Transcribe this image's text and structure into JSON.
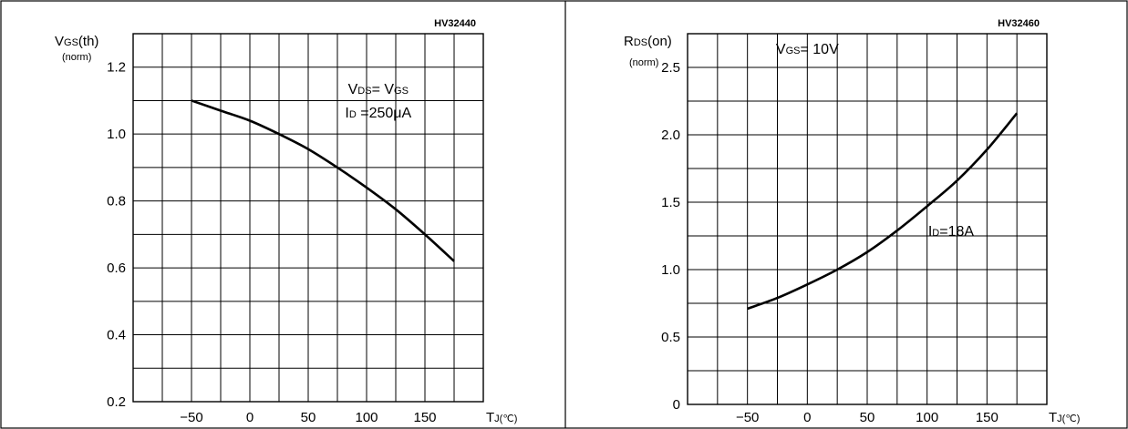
{
  "chart_data": [
    {
      "type": "line",
      "code": "HV32440",
      "ylabel": "VGS(th)",
      "ylabel_parts": {
        "main": "V",
        "sub": "GS",
        "rest": "(th)"
      },
      "ylabel_unit": "(norm)",
      "xlabel_parts": {
        "main": "T",
        "sub": "J",
        "rest": "(℃)"
      },
      "xlim": [
        -100,
        200
      ],
      "ylim": [
        0.2,
        1.3
      ],
      "x_ticks": [
        -50,
        0,
        50,
        100,
        150
      ],
      "x_tick_labels": [
        "−50",
        "0",
        "50",
        "100",
        "150"
      ],
      "y_ticks": [
        0.2,
        0.4,
        0.6,
        0.8,
        1.0,
        1.2
      ],
      "y_tick_labels": [
        "0.2",
        "0.4",
        "0.6",
        "0.8",
        "1.0",
        "1.2"
      ],
      "grid": true,
      "annotations": [
        {
          "main": "V",
          "sub": "DS",
          "rest": "= V",
          "sub2": "GS",
          "x": 110,
          "y": 1.12
        },
        {
          "main": "I",
          "sub": "D",
          "rest": " =250μA",
          "x": 110,
          "y": 1.05
        }
      ],
      "series": [
        {
          "x": [
            -50,
            -25,
            0,
            25,
            50,
            75,
            100,
            125,
            150,
            175
          ],
          "y": [
            1.1,
            1.07,
            1.04,
            1.0,
            0.955,
            0.9,
            0.84,
            0.775,
            0.7,
            0.62
          ]
        }
      ]
    },
    {
      "type": "line",
      "code": "HV32460",
      "ylabel": "RDS(on)",
      "ylabel_parts": {
        "main": "R",
        "sub": "DS",
        "rest": "(on)"
      },
      "ylabel_unit": "(norm)",
      "xlabel_parts": {
        "main": "T",
        "sub": "J",
        "rest": "(℃)"
      },
      "xlim": [
        -100,
        200
      ],
      "ylim": [
        0,
        2.75
      ],
      "x_ticks": [
        -50,
        0,
        50,
        100,
        150
      ],
      "x_tick_labels": [
        "−50",
        "0",
        "50",
        "100",
        "150"
      ],
      "y_ticks": [
        0,
        0.5,
        1.0,
        1.5,
        2.0,
        2.5
      ],
      "y_tick_labels": [
        "0",
        "0.5",
        "1.0",
        "1.5",
        "2.0",
        "2.5"
      ],
      "grid": true,
      "annotations": [
        {
          "main": "V",
          "sub": "GS",
          "rest": "= 10V",
          "x": 0,
          "y": 2.6
        },
        {
          "main": "I",
          "sub": "D",
          "rest": "=18A",
          "x": 120,
          "y": 1.25
        }
      ],
      "series": [
        {
          "x": [
            -50,
            -25,
            0,
            25,
            50,
            75,
            100,
            125,
            150,
            175
          ],
          "y": [
            0.71,
            0.79,
            0.89,
            1.0,
            1.13,
            1.29,
            1.47,
            1.66,
            1.89,
            2.16
          ]
        }
      ]
    }
  ]
}
